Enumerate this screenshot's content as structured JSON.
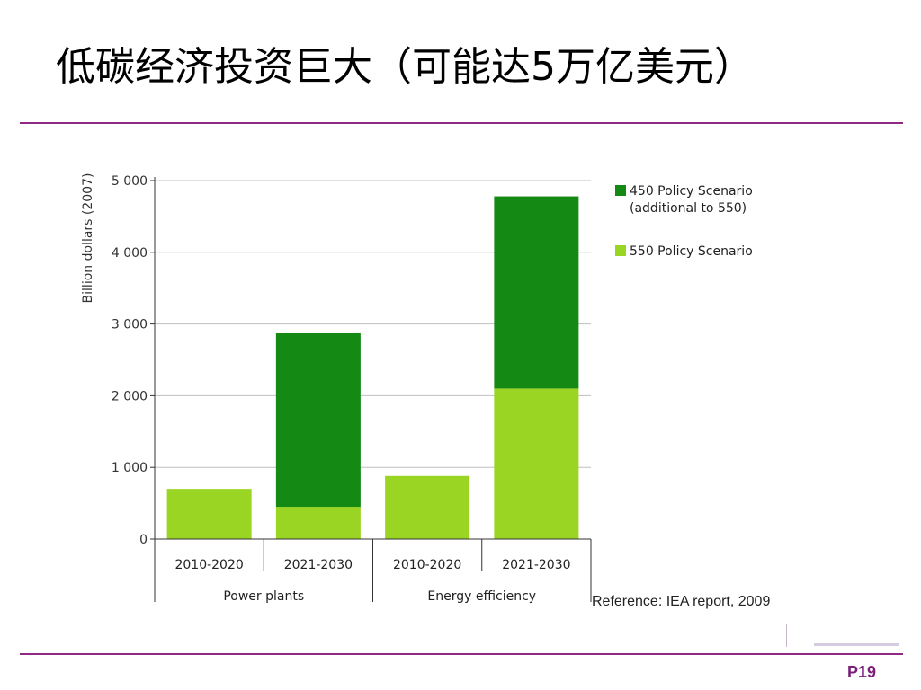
{
  "slide": {
    "title": "低碳经济投资巨大（可能达5万亿美元）",
    "reference": "Reference: IEA report, 2009",
    "page": "P19"
  },
  "colors": {
    "dark_green": "#148a14",
    "light_green": "#99d522",
    "accent_rule": "#8e2a83",
    "axis": "#333333",
    "grid": "#bfbfbf"
  },
  "chart_data": {
    "type": "bar",
    "stacked": true,
    "ylabel": "Billion dollars (2007)",
    "ylim": [
      0,
      5000
    ],
    "yticks": [
      0,
      1000,
      2000,
      3000,
      4000,
      5000
    ],
    "ytick_labels": [
      "0",
      "1 000",
      "2 000",
      "3 000",
      "4 000",
      "5 000"
    ],
    "grid": true,
    "legend_position": "top-right",
    "groups": [
      {
        "label": "Power plants",
        "categories": [
          "2010-2020",
          "2021-2030"
        ]
      },
      {
        "label": "Energy efficiency",
        "categories": [
          "2010-2020",
          "2021-2030"
        ]
      }
    ],
    "categories": [
      "2010-2020",
      "2021-2030",
      "2010-2020",
      "2021-2030"
    ],
    "series": [
      {
        "name": "550 Policy Scenario",
        "color": "#99d522",
        "values": [
          700,
          450,
          880,
          2100
        ]
      },
      {
        "name": "450 Policy Scenario (additional to 550)",
        "name_lines": [
          "450 Policy Scenario",
          "(additional to 550)"
        ],
        "color": "#148a14",
        "values": [
          0,
          2420,
          0,
          2680
        ]
      }
    ]
  }
}
